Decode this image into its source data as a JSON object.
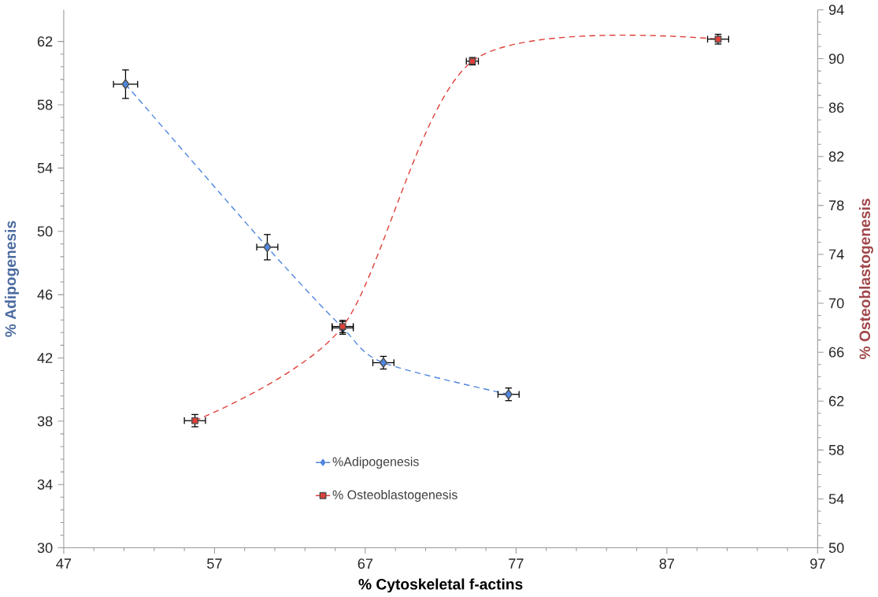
{
  "chart_data": {
    "type": "line",
    "xlabel": "% Cytoskeletal f-actins",
    "ylabel": "% Adipogenesis",
    "y2label": "% Osteoblastogenesis",
    "xlim": [
      47,
      97
    ],
    "xticks": [
      47,
      57,
      67,
      77,
      87,
      97
    ],
    "ylim": [
      30,
      64
    ],
    "yticks": [
      30,
      34,
      38,
      42,
      46,
      50,
      54,
      58,
      62
    ],
    "y2lim": [
      50,
      94
    ],
    "y2ticks": [
      50,
      54,
      58,
      62,
      66,
      70,
      74,
      78,
      82,
      86,
      90,
      94
    ],
    "legend": "bottom",
    "line_style": "dashed",
    "grid": false,
    "series": [
      {
        "name": "%Adipogenesis",
        "color": "#4f86e0",
        "marker": "diamond",
        "x": [
          51.1,
          60.5,
          65.5,
          68.2,
          76.5
        ],
        "values": [
          59.3,
          49.0,
          43.9,
          41.7,
          39.7
        ],
        "errors": [
          0.9,
          0.8,
          0.4,
          0.4,
          0.4
        ],
        "xerrors": [
          0.8,
          0.7,
          0.7,
          0.7,
          0.7
        ]
      },
      {
        "name": "% Osteoblastogenesis",
        "color": "#e0403a",
        "marker": "square",
        "axis": "y2",
        "x": [
          55.7,
          65.5,
          74.1,
          90.4
        ],
        "values": [
          60.4,
          68.1,
          89.8,
          91.6
        ],
        "errors": [
          0.5,
          0.5,
          0.3,
          0.4
        ],
        "xerrors": [
          0.7,
          0.7,
          0.4,
          0.7
        ]
      }
    ]
  }
}
